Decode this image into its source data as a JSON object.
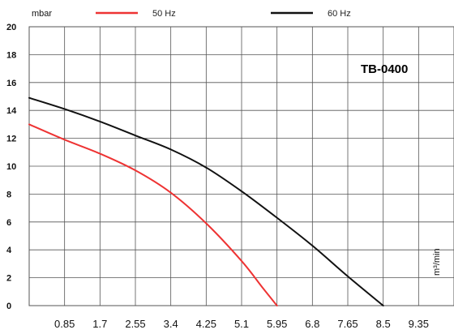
{
  "chart_data": {
    "type": "line",
    "title": "TB-0400",
    "ylabel": "mbar",
    "xlabel": "m³/min",
    "ylim": [
      0,
      20
    ],
    "xlim": [
      0,
      10.2
    ],
    "grid": true,
    "legend_position": "top",
    "y_ticks": [
      0,
      2,
      4,
      6,
      8,
      10,
      12,
      14,
      16,
      18,
      20
    ],
    "y_tick_labels": [
      "0",
      "2",
      "4",
      "6",
      "8",
      "10",
      "12",
      "14",
      "16",
      "18",
      "20"
    ],
    "x_ticks": [
      0.85,
      1.7,
      2.55,
      3.4,
      4.25,
      5.1,
      5.95,
      6.8,
      7.65,
      8.5,
      9.35
    ],
    "x_tick_labels": [
      "0.85",
      "1.7",
      "2.55",
      "3.4",
      "4.25",
      "5.1",
      "5.95",
      "6.8",
      "7.65",
      "8.5",
      "9.35"
    ],
    "series": [
      {
        "name": "50 Hz",
        "color": "#ee3333",
        "points": [
          [
            0,
            13.0
          ],
          [
            0.85,
            11.9
          ],
          [
            1.7,
            10.9
          ],
          [
            2.55,
            9.7
          ],
          [
            3.4,
            8.1
          ],
          [
            4.25,
            5.9
          ],
          [
            5.1,
            3.2
          ],
          [
            5.6,
            1.3
          ],
          [
            5.95,
            0.0
          ]
        ]
      },
      {
        "name": "60 Hz",
        "color": "#111111",
        "points": [
          [
            0,
            14.9
          ],
          [
            0.85,
            14.1
          ],
          [
            1.7,
            13.2
          ],
          [
            2.55,
            12.2
          ],
          [
            3.4,
            11.2
          ],
          [
            4.25,
            9.9
          ],
          [
            5.1,
            8.2
          ],
          [
            5.95,
            6.3
          ],
          [
            6.8,
            4.3
          ],
          [
            7.65,
            2.1
          ],
          [
            8.5,
            0.0
          ]
        ]
      }
    ]
  }
}
